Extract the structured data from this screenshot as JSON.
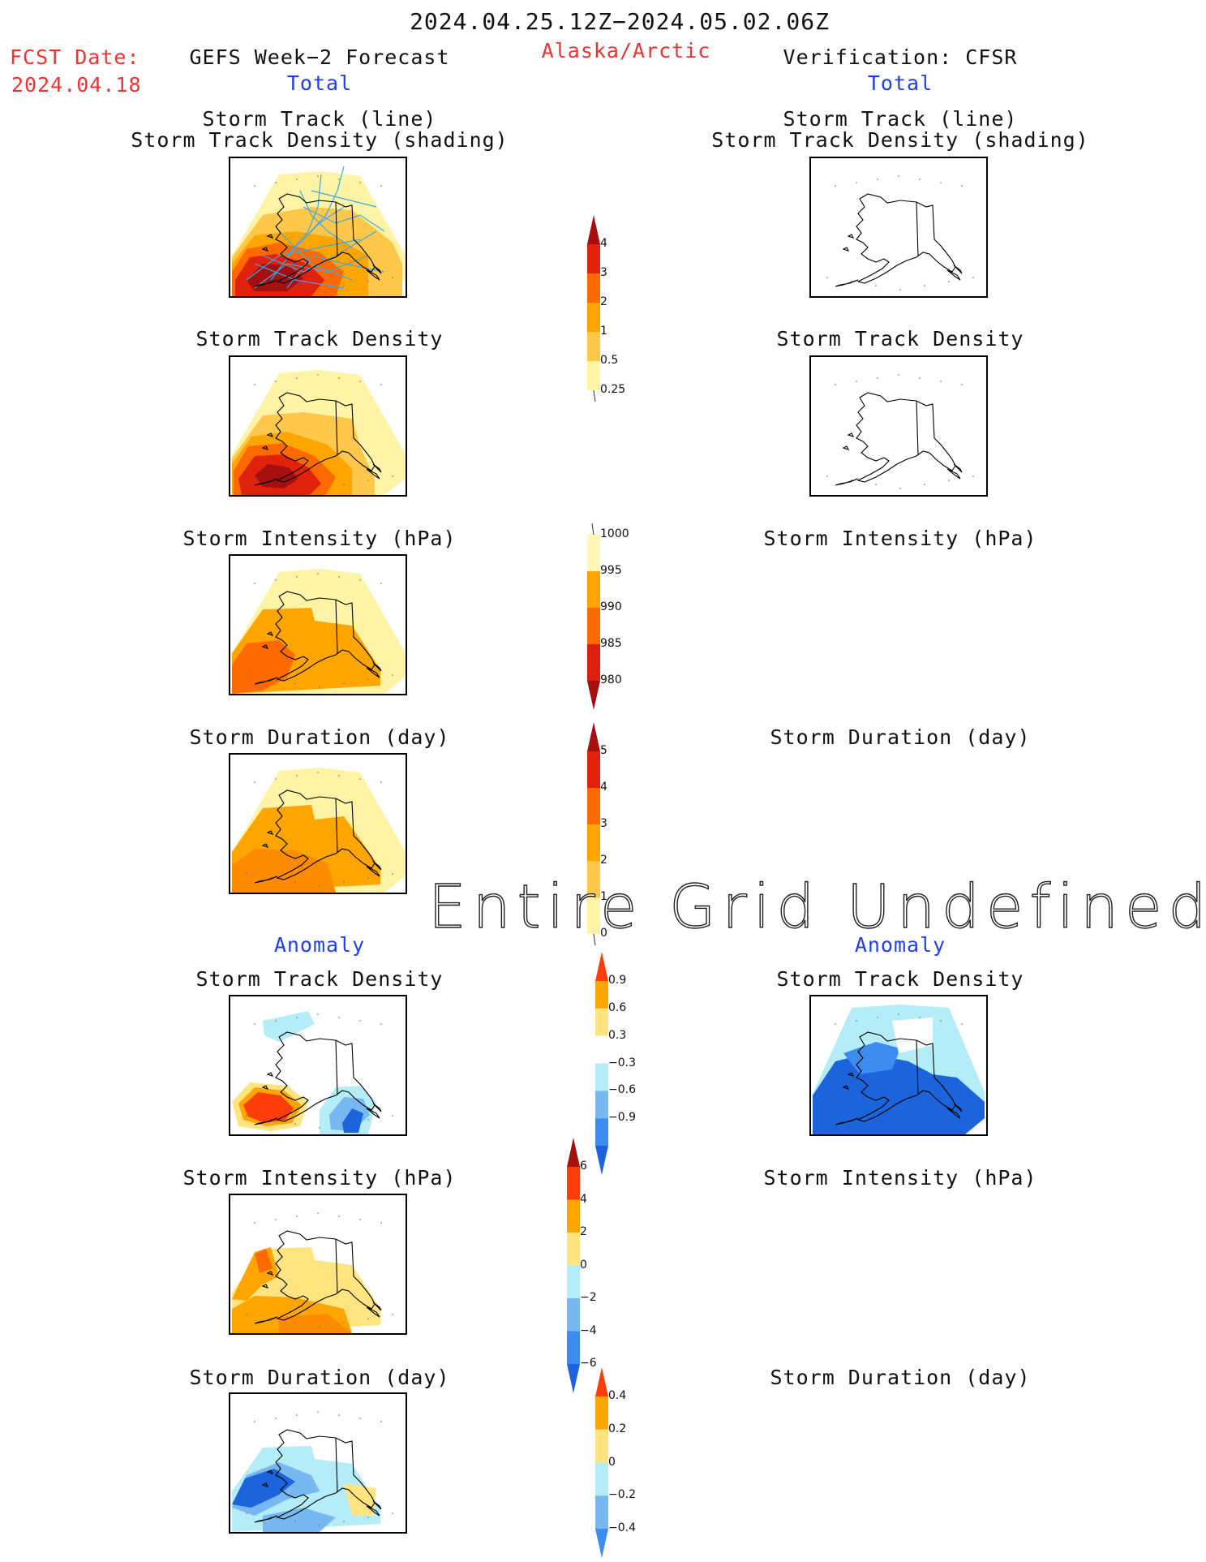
{
  "header": {
    "date_range": "2024.04.25.12Z−2024.05.02.06Z",
    "fcst_label": "FCST Date:",
    "fcst_date": "2024.04.18",
    "left_title": "GEFS Week−2 Forecast",
    "region": "Alaska/Arctic",
    "right_title": "Verification: CFSR"
  },
  "left": {
    "total_label": "Total",
    "anomaly_label": "Anomaly",
    "panels": [
      {
        "title_line1": "Storm Track (line)",
        "title_line2": "Storm Track Density (shading)"
      },
      {
        "title_line1": "Storm Track Density"
      },
      {
        "title_line1": "Storm Intensity (hPa)"
      },
      {
        "title_line1": "Storm Duration (day)"
      },
      {
        "title_line1": "Storm Track Density"
      },
      {
        "title_line1": "Storm Intensity (hPa)"
      },
      {
        "title_line1": "Storm Duration (day)"
      }
    ]
  },
  "right": {
    "total_label": "Total",
    "anomaly_label": "Anomaly",
    "panels": [
      {
        "title_line1": "Storm Track (line)",
        "title_line2": "Storm Track Density (shading)"
      },
      {
        "title_line1": "Storm Track Density"
      },
      {
        "title_line1": "Storm Intensity (hPa)"
      },
      {
        "title_line1": "Storm Duration (day)"
      },
      {
        "title_line1": "Storm Track Density"
      },
      {
        "title_line1": "Storm Intensity (hPa)"
      },
      {
        "title_line1": "Storm Duration (day)"
      }
    ]
  },
  "undefined_message": "Entire Grid Undefined",
  "colorbars": {
    "density": {
      "labels": [
        "4",
        "3",
        "2",
        "1",
        "0.5",
        "0.25"
      ],
      "colors": [
        "#a50f0f",
        "#e0210c",
        "#ff6a00",
        "#ffa500",
        "#ffc84a",
        "#fff3a6"
      ]
    },
    "intensity": {
      "labels": [
        "1000",
        "995",
        "990",
        "985",
        "980"
      ],
      "colors": [
        "#fff6b8",
        "#ffa500",
        "#ff6a00",
        "#dd1f0d",
        "#a50f0f"
      ]
    },
    "duration": {
      "labels": [
        "5",
        "4",
        "3",
        "2",
        "1",
        "0"
      ],
      "colors": [
        "#a50f0f",
        "#e0210c",
        "#ff6a00",
        "#ffa500",
        "#ffc84a",
        "#fff3a6"
      ]
    },
    "density_anom": {
      "labels": [
        "0.9",
        "0.6",
        "0.3",
        "−0.3",
        "−0.6",
        "−0.9"
      ],
      "colors": [
        "#ff3d0a",
        "#ffa500",
        "#ffe480",
        "#ffffff",
        "#b4ecf8",
        "#78b8f0",
        "#3d8cf0",
        "#1c64dc"
      ]
    },
    "intensity_anom": {
      "labels": [
        "6",
        "4",
        "2",
        "0",
        "−2",
        "−4",
        "−6"
      ],
      "colors": [
        "#a50f0f",
        "#ff3d0a",
        "#ffa500",
        "#ffe480",
        "#b4ecf8",
        "#78b8f0",
        "#3d8cf0",
        "#1c64dc"
      ]
    },
    "duration_anom": {
      "labels": [
        "0.4",
        "0.2",
        "0",
        "−0.2",
        "−0.4"
      ],
      "colors": [
        "#ff3d0a",
        "#ffa500",
        "#ffe480",
        "#b4ecf8",
        "#78b8f0",
        "#3d8cf0"
      ]
    }
  },
  "colors": {
    "red_text": "#ee3333",
    "blue_text": "#1f3fef",
    "storm_lines": "#3ea8e6"
  }
}
